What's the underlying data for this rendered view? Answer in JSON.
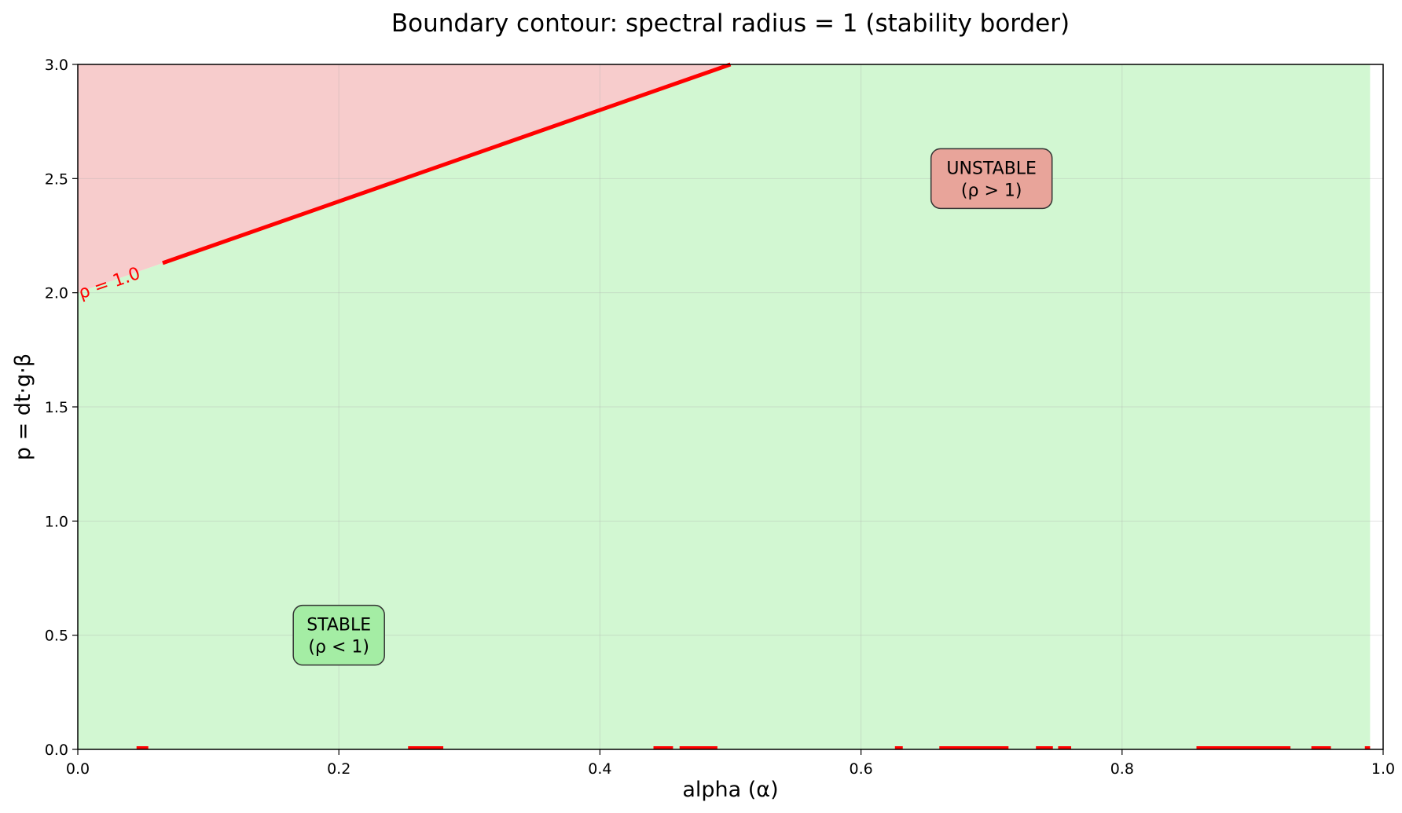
{
  "chart_data": {
    "type": "area",
    "title": "Boundary contour: spectral radius = 1 (stability border)",
    "xlabel": "alpha (α)",
    "ylabel": "p = dt·g·β",
    "xlim": [
      0.0,
      1.0
    ],
    "ylim": [
      0.0,
      3.0
    ],
    "x_ticks": [
      "0.0",
      "0.2",
      "0.4",
      "0.6",
      "0.8",
      "1.0"
    ],
    "y_ticks": [
      "0.0",
      "0.5",
      "1.0",
      "1.5",
      "2.0",
      "2.5",
      "3.0"
    ],
    "grid": true,
    "colors": {
      "stable_fill": "#d2f7d2",
      "unstable_fill": "#f7cccc",
      "contour": "#ff0000",
      "stable_box": "#a4eda4",
      "unstable_box": "#e8a49a"
    },
    "contour": {
      "label": "ρ = 1.0",
      "x": [
        0.0,
        0.5
      ],
      "y": [
        2.0,
        3.0
      ],
      "data_extent_x": 0.99,
      "baseline_segments": [
        [
          0.045,
          0.054
        ],
        [
          0.253,
          0.28
        ],
        [
          0.441,
          0.456
        ],
        [
          0.461,
          0.49
        ],
        [
          0.626,
          0.632
        ],
        [
          0.66,
          0.713
        ],
        [
          0.734,
          0.747
        ],
        [
          0.751,
          0.761
        ],
        [
          0.857,
          0.929
        ],
        [
          0.945,
          0.96
        ],
        [
          0.986,
          0.99
        ]
      ]
    },
    "annotations": [
      {
        "lines": [
          "STABLE",
          "(ρ < 1)"
        ],
        "x": 0.2,
        "y": 0.5,
        "region": "stable"
      },
      {
        "lines": [
          "UNSTABLE",
          "(ρ > 1)"
        ],
        "x": 0.7,
        "y": 2.5,
        "region": "unstable"
      }
    ]
  }
}
